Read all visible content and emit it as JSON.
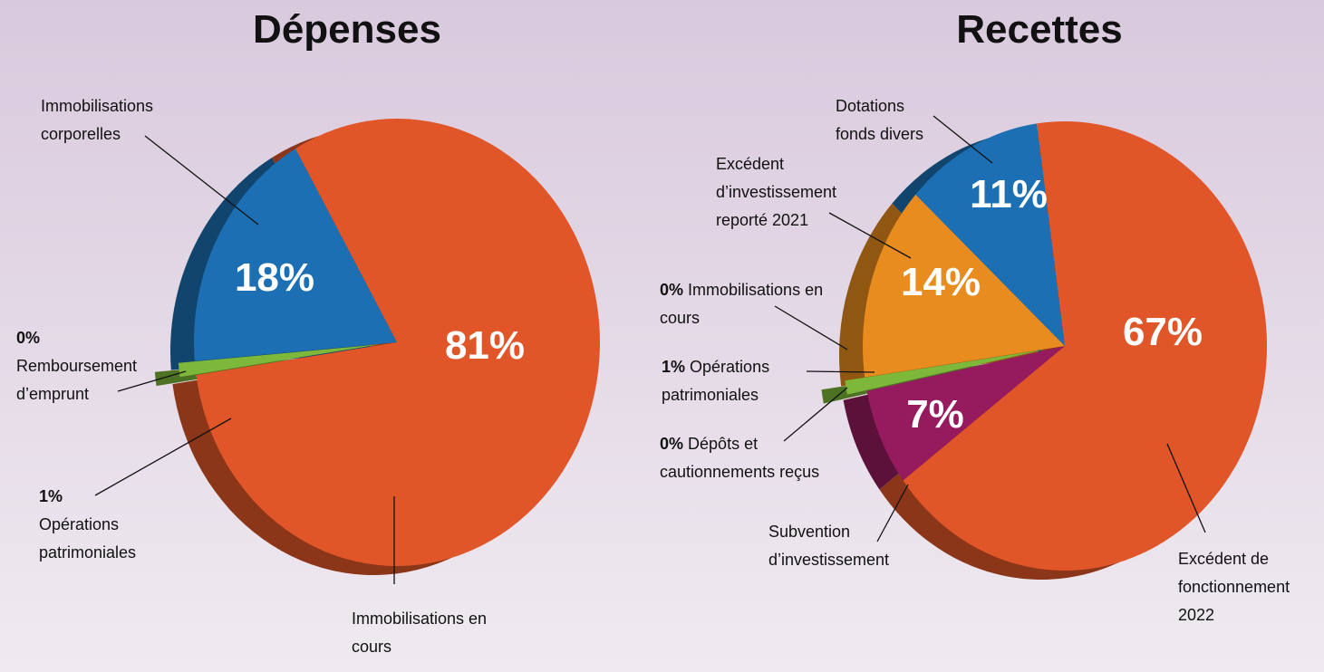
{
  "chart_data": [
    {
      "type": "pie",
      "title": "Dépenses",
      "categories": [
        "Immobilisations en cours",
        "Opérations patrimoniales",
        "Remboursement d’emprunt",
        "Immobilisations corporelles"
      ],
      "values": [
        81,
        1,
        0,
        18
      ],
      "value_labels": [
        "81%",
        "1%",
        "0%",
        "18%"
      ],
      "colors": [
        "#e05628",
        "#7db83a",
        "#7db83a",
        "#1c6fb2"
      ]
    },
    {
      "type": "pie",
      "title": "Recettes",
      "categories": [
        "Excédent de fonctionnement 2022",
        "Subvention d’investissement",
        "Dépôts et cautionnements reçus",
        "Opérations patrimoniales",
        "Immobilisations en cours",
        "Excédent d’investissement reporté 2021",
        "Dotations fonds divers"
      ],
      "values": [
        67,
        7,
        0,
        1,
        0,
        14,
        11
      ],
      "value_labels": [
        "67%",
        "7%",
        "0%",
        "1%",
        "0%",
        "14%",
        "11%"
      ],
      "colors": [
        "#e05628",
        "#951b5e",
        "#951b5e",
        "#7db83a",
        "#e98c1f",
        "#e98c1f",
        "#1c6fb2"
      ]
    }
  ]
}
